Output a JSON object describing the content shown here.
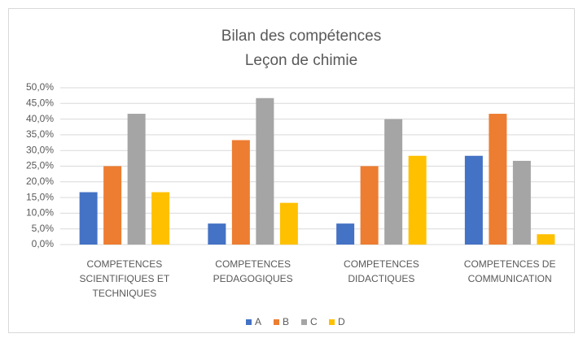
{
  "chart_data": {
    "type": "bar",
    "title": "Bilan des compétences",
    "subtitle": "Leçon de chimie",
    "categories": [
      "COMPETENCES SCIENTIFIQUES ET TECHNIQUES",
      "COMPETENCES PEDAGOGIQUES",
      "COMPETENCES DIDACTIQUES",
      "COMPETENCES DE COMMUNICATION"
    ],
    "series": [
      {
        "name": "A",
        "color": "#4472c4",
        "values": [
          16.7,
          6.7,
          6.7,
          28.3
        ]
      },
      {
        "name": "B",
        "color": "#ed7d31",
        "values": [
          25,
          33.3,
          25,
          41.7
        ]
      },
      {
        "name": "C",
        "color": "#a5a5a5",
        "values": [
          41.7,
          46.7,
          40,
          26.7
        ]
      },
      {
        "name": "D",
        "color": "#ffc000",
        "values": [
          16.7,
          13.3,
          28.3,
          3.3
        ]
      }
    ],
    "ylim": [
      0,
      50
    ],
    "yticks": [
      {
        "value": 0,
        "label": "0,0%"
      },
      {
        "value": 5,
        "label": "5,0%"
      },
      {
        "value": 10,
        "label": "10,0%"
      },
      {
        "value": 15,
        "label": "15,0%"
      },
      {
        "value": 20,
        "label": "20,0%"
      },
      {
        "value": 25,
        "label": "25,0%"
      },
      {
        "value": 30,
        "label": "30,0%"
      },
      {
        "value": 35,
        "label": "35,0%"
      },
      {
        "value": 40,
        "label": "40,0%"
      },
      {
        "value": 45,
        "label": "45,0%"
      },
      {
        "value": 50,
        "label": "50,0%"
      }
    ],
    "grid": true,
    "legend": "bottom"
  }
}
